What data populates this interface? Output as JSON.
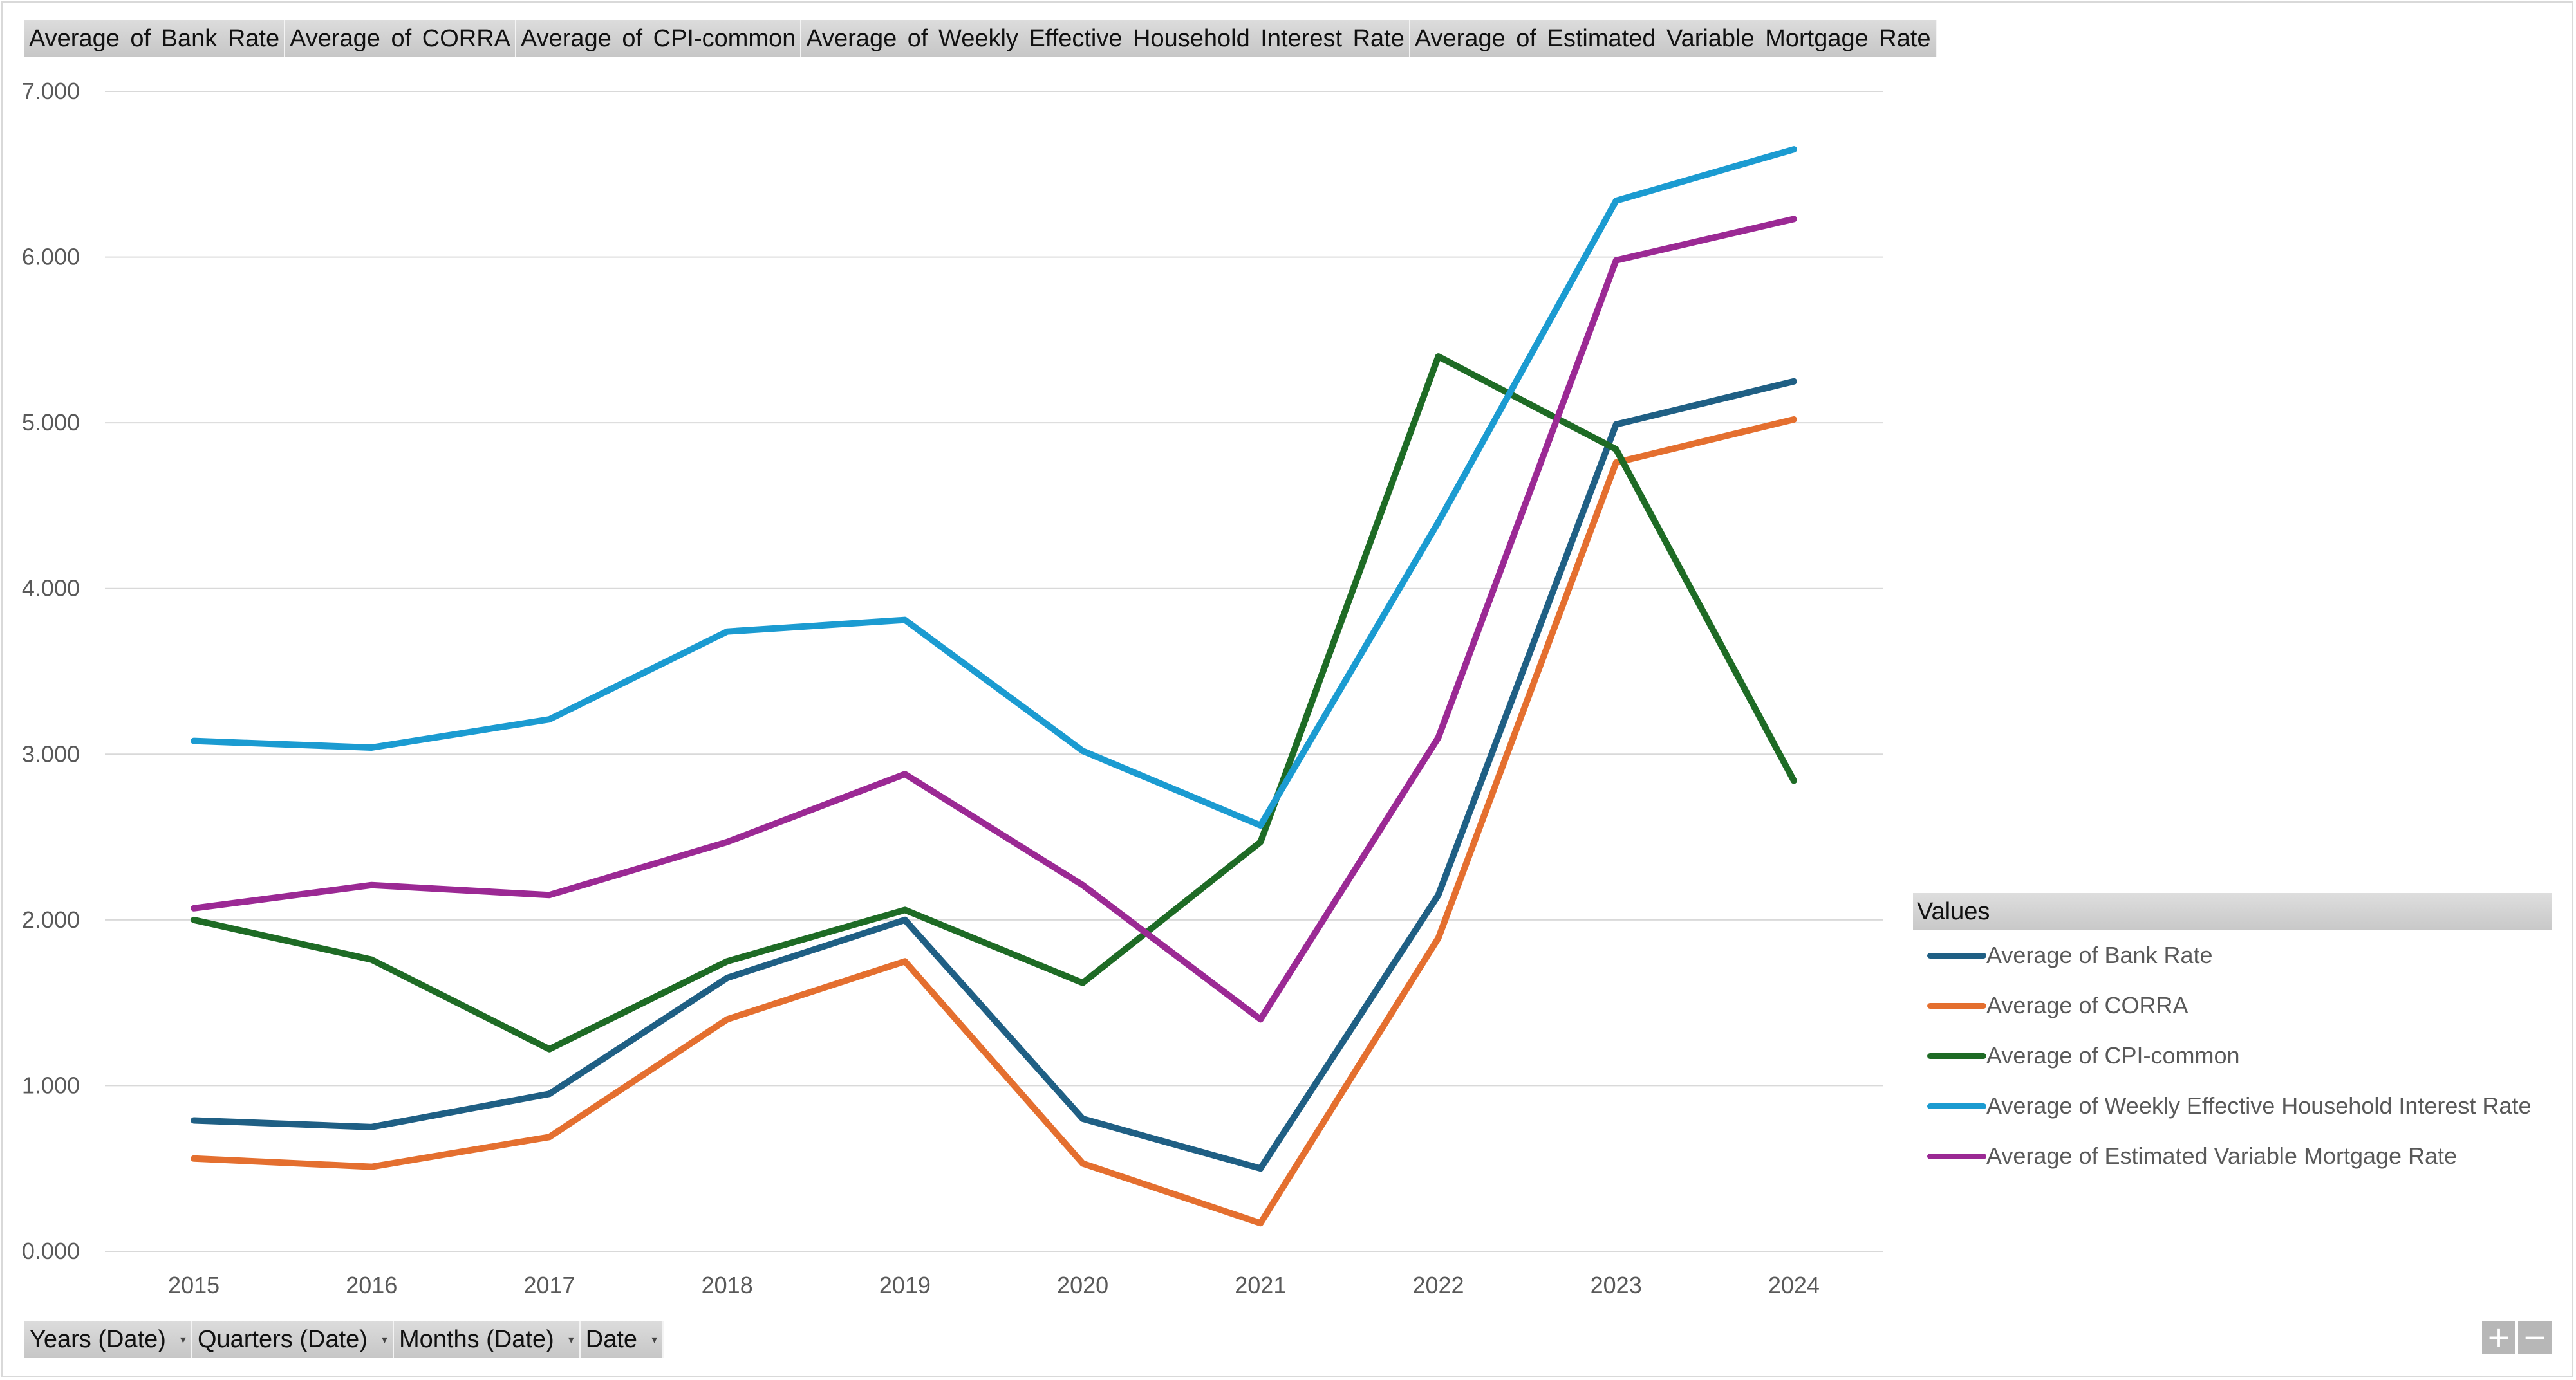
{
  "value_fields": [
    "Average of Bank Rate",
    "Average of CORRA",
    "Average of CPI-common",
    "Average of Weekly Effective Household Interest Rate",
    "Average of Estimated Variable Mortgage Rate"
  ],
  "axis_fields": [
    {
      "label": "Years (Date)",
      "icon": "dropdown-arrow-icon"
    },
    {
      "label": "Quarters (Date)",
      "icon": "dropdown-arrow-icon"
    },
    {
      "label": "Months (Date)",
      "icon": "dropdown-arrow-icon"
    },
    {
      "label": "Date",
      "icon": "dropdown-arrow-icon"
    }
  ],
  "legend": {
    "title": "Values"
  },
  "zoom": {
    "expand": "+",
    "collapse": "−"
  },
  "chart_data": {
    "type": "line",
    "title": "",
    "xlabel": "",
    "ylabel": "",
    "x": [
      "2015",
      "2016",
      "2017",
      "2018",
      "2019",
      "2020",
      "2021",
      "2022",
      "2023",
      "2024"
    ],
    "ylim": [
      0,
      7
    ],
    "yticks": [
      "0.000",
      "1.000",
      "2.000",
      "3.000",
      "4.000",
      "5.000",
      "6.000",
      "7.000"
    ],
    "grid": true,
    "legend_position": "right",
    "series": [
      {
        "name": "Average of Bank Rate",
        "color": "#1f5f84",
        "values": [
          0.79,
          0.75,
          0.95,
          1.65,
          2.0,
          0.8,
          0.5,
          2.15,
          4.99,
          5.25
        ]
      },
      {
        "name": "Average of CORRA",
        "color": "#e46f2f",
        "values": [
          0.56,
          0.51,
          0.69,
          1.4,
          1.75,
          0.53,
          0.17,
          1.89,
          4.76,
          5.02
        ]
      },
      {
        "name": "Average of CPI-common",
        "color": "#1e6b25",
        "values": [
          2.0,
          1.76,
          1.22,
          1.75,
          2.06,
          1.62,
          2.47,
          5.4,
          4.84,
          2.84
        ]
      },
      {
        "name": "Average of Weekly Effective Household Interest Rate",
        "color": "#1b9bd1",
        "values": [
          3.08,
          3.04,
          3.21,
          3.74,
          3.81,
          3.02,
          2.57,
          4.4,
          6.34,
          6.65
        ]
      },
      {
        "name": "Average of Estimated Variable Mortgage Rate",
        "color": "#9b2994",
        "values": [
          2.07,
          2.21,
          2.15,
          2.47,
          2.88,
          2.21,
          1.4,
          3.1,
          5.98,
          6.23
        ]
      }
    ]
  }
}
